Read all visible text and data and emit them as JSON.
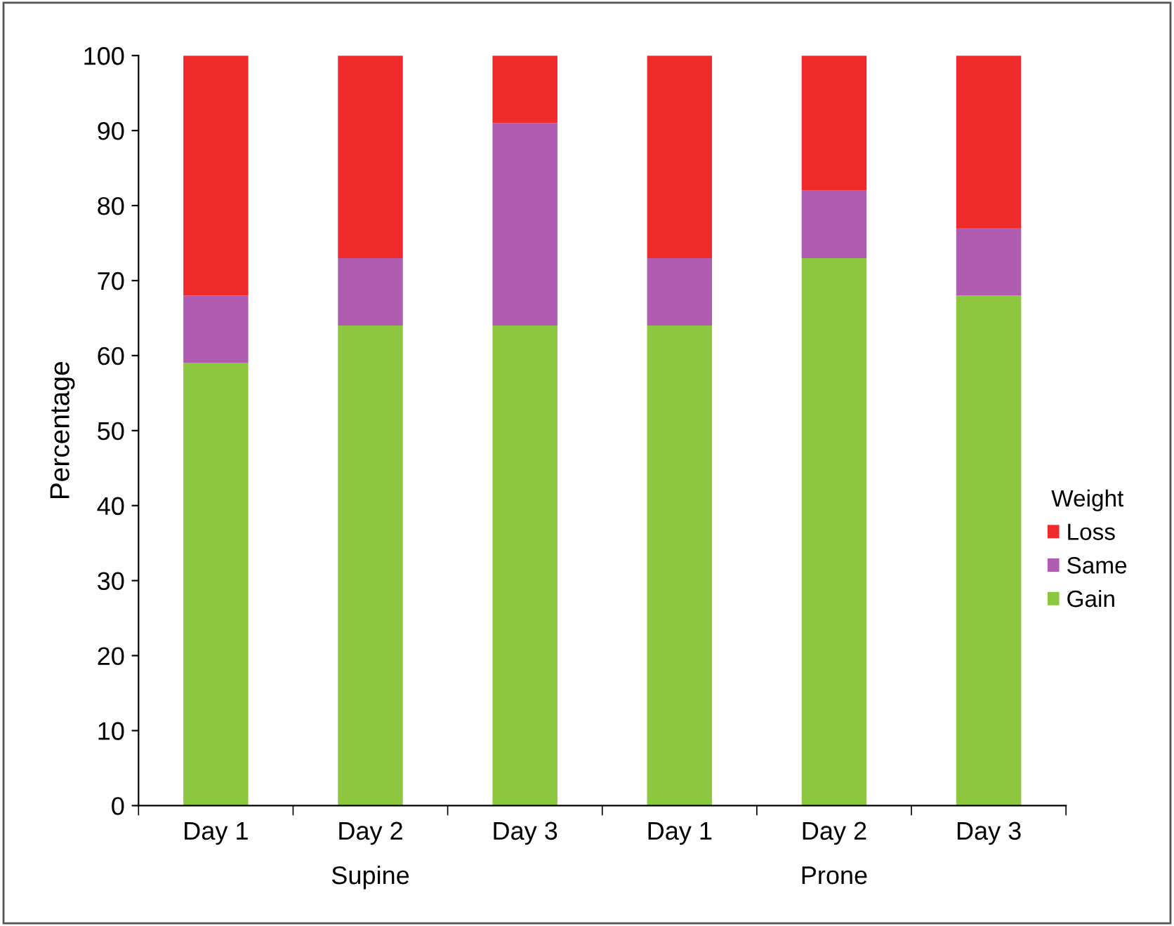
{
  "chart_data": {
    "type": "bar",
    "stacked": true,
    "ylabel": "Percentage",
    "legend_title": "Weight",
    "categories": [
      "Day 1",
      "Day 2",
      "Day 3",
      "Day 1",
      "Day 2",
      "Day 3"
    ],
    "series": [
      {
        "name": "Gain",
        "color": "#8dc63f",
        "values": [
          59,
          64,
          64,
          64,
          73,
          68
        ]
      },
      {
        "name": "Same",
        "color": "#b05cb0",
        "values": [
          9,
          9,
          27,
          9,
          9,
          9
        ]
      },
      {
        "name": "Loss",
        "color": "#ee2a2a",
        "values": [
          32,
          27,
          9,
          27,
          18,
          23
        ]
      }
    ],
    "ylim": [
      0,
      100
    ],
    "yticks": [
      0,
      10,
      20,
      30,
      40,
      50,
      60,
      70,
      80,
      90,
      100
    ],
    "annotations": [
      "Supine",
      "Prone"
    ],
    "legend": "right",
    "grid": false
  }
}
